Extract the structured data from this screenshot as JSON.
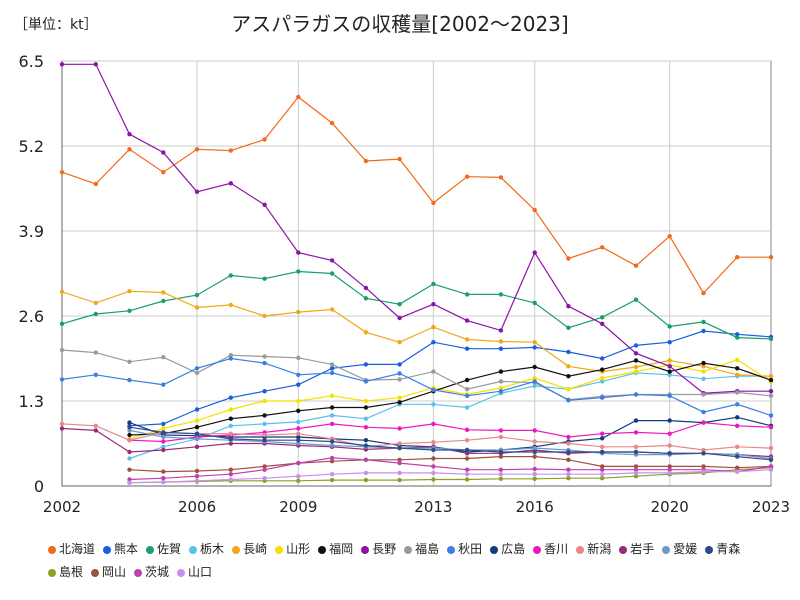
{
  "chart_data": {
    "type": "line",
    "title": "アスパラガスの収穫量[2002～2023]",
    "unit_label": "［単位：kt］",
    "xlabel": "",
    "ylabel": "",
    "x": [
      2002,
      2003,
      2004,
      2005,
      2006,
      2007,
      2008,
      2009,
      2010,
      2011,
      2012,
      2013,
      2014,
      2015,
      2016,
      2017,
      2018,
      2019,
      2020,
      2021,
      2022,
      2023
    ],
    "x_ticks": [
      2002,
      2006,
      2009,
      2013,
      2016,
      2020,
      2023
    ],
    "y_ticks": [
      0,
      1.3,
      2.6,
      3.9,
      5.2,
      6.5
    ],
    "ylim": [
      0,
      6.5
    ],
    "grid": true,
    "legend_position": "bottom",
    "series": [
      {
        "name": "北海道",
        "color": "#f26a1b",
        "values": [
          4.8,
          4.62,
          5.15,
          4.8,
          5.15,
          5.13,
          5.3,
          5.95,
          5.55,
          4.97,
          5.0,
          4.33,
          4.73,
          4.72,
          4.22,
          3.48,
          3.65,
          3.37,
          3.82,
          2.95,
          3.5,
          3.5
        ]
      },
      {
        "name": "熊本",
        "color": "#1a5ee0",
        "values": [
          null,
          null,
          0.92,
          0.95,
          1.17,
          1.35,
          1.45,
          1.55,
          1.8,
          1.86,
          1.86,
          2.2,
          2.1,
          2.1,
          2.12,
          2.05,
          1.95,
          2.15,
          2.2,
          2.37,
          2.32,
          2.28
        ]
      },
      {
        "name": "佐賀",
        "color": "#1a9e6a",
        "values": [
          2.48,
          2.63,
          2.68,
          2.83,
          2.92,
          3.22,
          3.17,
          3.28,
          3.25,
          2.87,
          2.78,
          3.09,
          2.93,
          2.93,
          2.8,
          2.42,
          2.58,
          2.85,
          2.44,
          2.51,
          2.27,
          2.25
        ]
      },
      {
        "name": "栃木",
        "color": "#5cc0ee",
        "values": [
          null,
          null,
          0.42,
          0.6,
          0.72,
          0.92,
          0.95,
          0.98,
          1.08,
          1.03,
          1.25,
          1.25,
          1.2,
          1.42,
          1.53,
          1.48,
          1.6,
          1.73,
          1.7,
          1.64,
          1.68,
          1.68
        ]
      },
      {
        "name": "長崎",
        "color": "#f0a818",
        "values": [
          2.97,
          2.8,
          2.98,
          2.96,
          2.73,
          2.77,
          2.6,
          2.66,
          2.7,
          2.35,
          2.2,
          2.43,
          2.24,
          2.21,
          2.2,
          1.83,
          1.75,
          1.82,
          1.92,
          1.83,
          1.7,
          1.68
        ]
      },
      {
        "name": "山形",
        "color": "#f5e000",
        "values": [
          null,
          null,
          0.72,
          0.88,
          1.0,
          1.17,
          1.3,
          1.3,
          1.38,
          1.3,
          1.35,
          1.5,
          1.4,
          1.5,
          1.65,
          1.48,
          1.65,
          1.75,
          1.85,
          1.75,
          1.93,
          1.6
        ]
      },
      {
        "name": "福岡",
        "color": "#111111",
        "values": [
          null,
          null,
          0.78,
          0.8,
          0.9,
          1.03,
          1.08,
          1.15,
          1.2,
          1.2,
          1.28,
          1.45,
          1.62,
          1.75,
          1.82,
          1.68,
          1.78,
          1.92,
          1.75,
          1.88,
          1.8,
          1.62
        ]
      },
      {
        "name": "長野",
        "color": "#8b14a8",
        "values": [
          6.45,
          6.45,
          5.38,
          5.1,
          4.5,
          4.63,
          4.3,
          3.57,
          3.45,
          3.03,
          2.57,
          2.78,
          2.53,
          2.38,
          3.57,
          2.75,
          2.48,
          2.03,
          1.83,
          1.42,
          1.45,
          1.45
        ]
      },
      {
        "name": "福島",
        "color": "#9a9a9a",
        "values": [
          2.08,
          2.04,
          1.9,
          1.97,
          1.73,
          2.0,
          1.98,
          1.96,
          1.86,
          1.62,
          1.63,
          1.75,
          1.48,
          1.6,
          1.58,
          1.32,
          1.37,
          1.4,
          1.4,
          1.4,
          1.43,
          1.38
        ]
      },
      {
        "name": "秋田",
        "color": "#3a7ee6",
        "values": [
          1.63,
          1.7,
          1.62,
          1.55,
          1.8,
          1.95,
          1.88,
          1.7,
          1.73,
          1.6,
          1.72,
          1.47,
          1.38,
          1.45,
          1.6,
          1.31,
          1.35,
          1.4,
          1.38,
          1.13,
          1.25,
          1.08
        ]
      },
      {
        "name": "広島",
        "color": "#123a7e",
        "values": [
          null,
          null,
          0.97,
          0.78,
          0.77,
          0.75,
          0.75,
          0.75,
          0.72,
          0.7,
          0.62,
          0.6,
          0.52,
          0.55,
          0.6,
          0.68,
          0.73,
          1.0,
          1.0,
          0.97,
          1.05,
          0.92
        ]
      },
      {
        "name": "香川",
        "color": "#ee18c0",
        "values": [
          null,
          null,
          0.7,
          0.68,
          0.75,
          0.78,
          0.82,
          0.88,
          0.95,
          0.9,
          0.88,
          0.95,
          0.86,
          0.85,
          0.85,
          0.75,
          0.8,
          0.82,
          0.8,
          0.97,
          0.92,
          0.9
        ]
      },
      {
        "name": "新潟",
        "color": "#e88888",
        "values": [
          0.95,
          0.92,
          0.7,
          0.82,
          0.8,
          0.8,
          0.78,
          0.8,
          0.72,
          0.6,
          0.65,
          0.67,
          0.7,
          0.75,
          0.68,
          0.65,
          0.6,
          0.6,
          0.62,
          0.55,
          0.6,
          0.58
        ]
      },
      {
        "name": "岩手",
        "color": "#9a2a78",
        "values": [
          0.88,
          0.85,
          0.52,
          0.55,
          0.6,
          0.65,
          0.65,
          0.62,
          0.6,
          0.56,
          0.58,
          0.6,
          0.5,
          0.5,
          0.55,
          0.5,
          0.52,
          0.52,
          0.5,
          0.5,
          0.48,
          0.45
        ]
      },
      {
        "name": "愛媛",
        "color": "#6a9ac8",
        "values": [
          null,
          null,
          0.85,
          0.75,
          0.72,
          0.7,
          0.68,
          0.65,
          0.62,
          0.6,
          0.58,
          0.58,
          0.55,
          0.55,
          0.58,
          0.55,
          0.5,
          0.48,
          0.48,
          0.5,
          0.48,
          0.42
        ]
      },
      {
        "name": "青森",
        "color": "#2e4a8a",
        "values": [
          null,
          null,
          0.9,
          0.82,
          0.8,
          0.72,
          0.7,
          0.7,
          0.68,
          0.62,
          0.58,
          0.55,
          0.55,
          0.52,
          0.52,
          0.52,
          0.52,
          0.52,
          0.5,
          0.5,
          0.45,
          0.4
        ]
      },
      {
        "name": "島根",
        "color": "#8aa028",
        "values": [
          null,
          null,
          0.05,
          0.06,
          0.07,
          0.08,
          0.08,
          0.08,
          0.09,
          0.09,
          0.09,
          0.1,
          0.1,
          0.11,
          0.11,
          0.12,
          0.12,
          0.15,
          0.18,
          0.2,
          0.25,
          0.28
        ]
      },
      {
        "name": "岡山",
        "color": "#a05040",
        "values": [
          null,
          null,
          0.25,
          0.22,
          0.23,
          0.25,
          0.3,
          0.35,
          0.38,
          0.4,
          0.4,
          0.42,
          0.42,
          0.45,
          0.45,
          0.4,
          0.3,
          0.3,
          0.3,
          0.3,
          0.28,
          0.3
        ]
      },
      {
        "name": "茨城",
        "color": "#c040b0",
        "values": [
          null,
          null,
          0.1,
          0.12,
          0.15,
          0.18,
          0.25,
          0.35,
          0.43,
          0.4,
          0.35,
          0.3,
          0.25,
          0.25,
          0.26,
          0.25,
          0.25,
          0.25,
          0.25,
          0.25,
          0.22,
          0.3
        ]
      },
      {
        "name": "山口",
        "color": "#c890e8",
        "values": [
          null,
          null,
          0.05,
          0.06,
          0.08,
          0.1,
          0.12,
          0.15,
          0.18,
          0.2,
          0.2,
          0.2,
          0.18,
          0.18,
          0.18,
          0.18,
          0.18,
          0.2,
          0.2,
          0.22,
          0.22,
          0.25
        ]
      }
    ]
  }
}
